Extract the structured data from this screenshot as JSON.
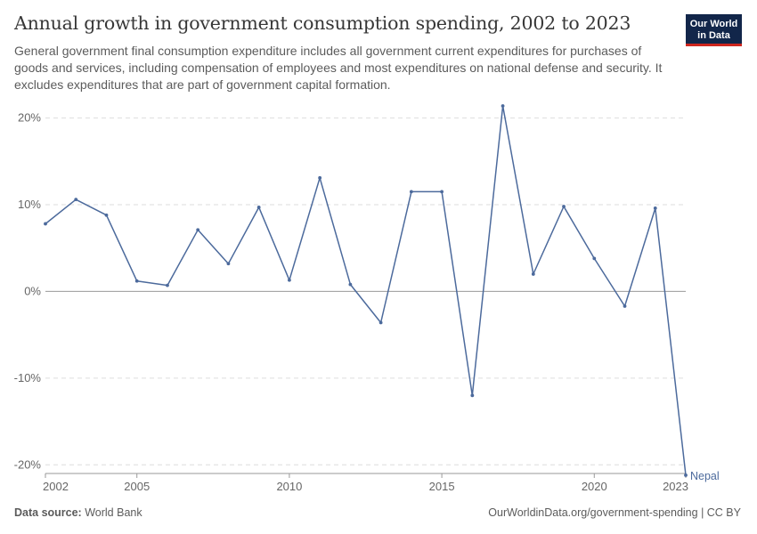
{
  "header": {
    "title": "Annual growth in government consumption spending, 2002 to 2023",
    "subtitle": "General government final consumption expenditure includes all government current expenditures for purchases of goods and services, including compensation of employees and most expenditures on national defense and security. It excludes expenditures that are part of government capital formation.",
    "logo_line1": "Our World",
    "logo_line2": "in Data"
  },
  "footer": {
    "source_label": "Data source:",
    "source_value": "World Bank",
    "url": "OurWorldinData.org/government-spending | CC BY"
  },
  "colors": {
    "series": "#4c6a9c",
    "grid": "#dddddd",
    "zero_line": "#9a9a9a",
    "logo_bg": "#12264a",
    "logo_accent": "#ce261e"
  },
  "chart_data": {
    "type": "line",
    "title": "Annual growth in government consumption spending, 2002 to 2023",
    "xlabel": "",
    "ylabel": "",
    "xlim": [
      2002,
      2023
    ],
    "ylim": [
      -21,
      21.5
    ],
    "x_ticks": [
      2002,
      2005,
      2010,
      2015,
      2020,
      2023
    ],
    "y_ticks": [
      -20,
      -10,
      0,
      10,
      20
    ],
    "y_tick_labels": [
      "-20%",
      "-10%",
      "0%",
      "10%",
      "20%"
    ],
    "grid": "horizontal dashed",
    "series": [
      {
        "name": "Nepal",
        "x": [
          2002,
          2003,
          2004,
          2005,
          2006,
          2007,
          2008,
          2009,
          2010,
          2011,
          2012,
          2013,
          2014,
          2015,
          2016,
          2017,
          2018,
          2019,
          2020,
          2021,
          2022,
          2023
        ],
        "values": [
          7.8,
          10.6,
          8.8,
          1.2,
          0.7,
          7.1,
          3.2,
          9.7,
          1.3,
          13.1,
          0.8,
          -3.6,
          11.5,
          11.5,
          -12.0,
          21.4,
          2.0,
          9.8,
          3.8,
          -1.7,
          9.6,
          -21.2
        ]
      }
    ]
  }
}
